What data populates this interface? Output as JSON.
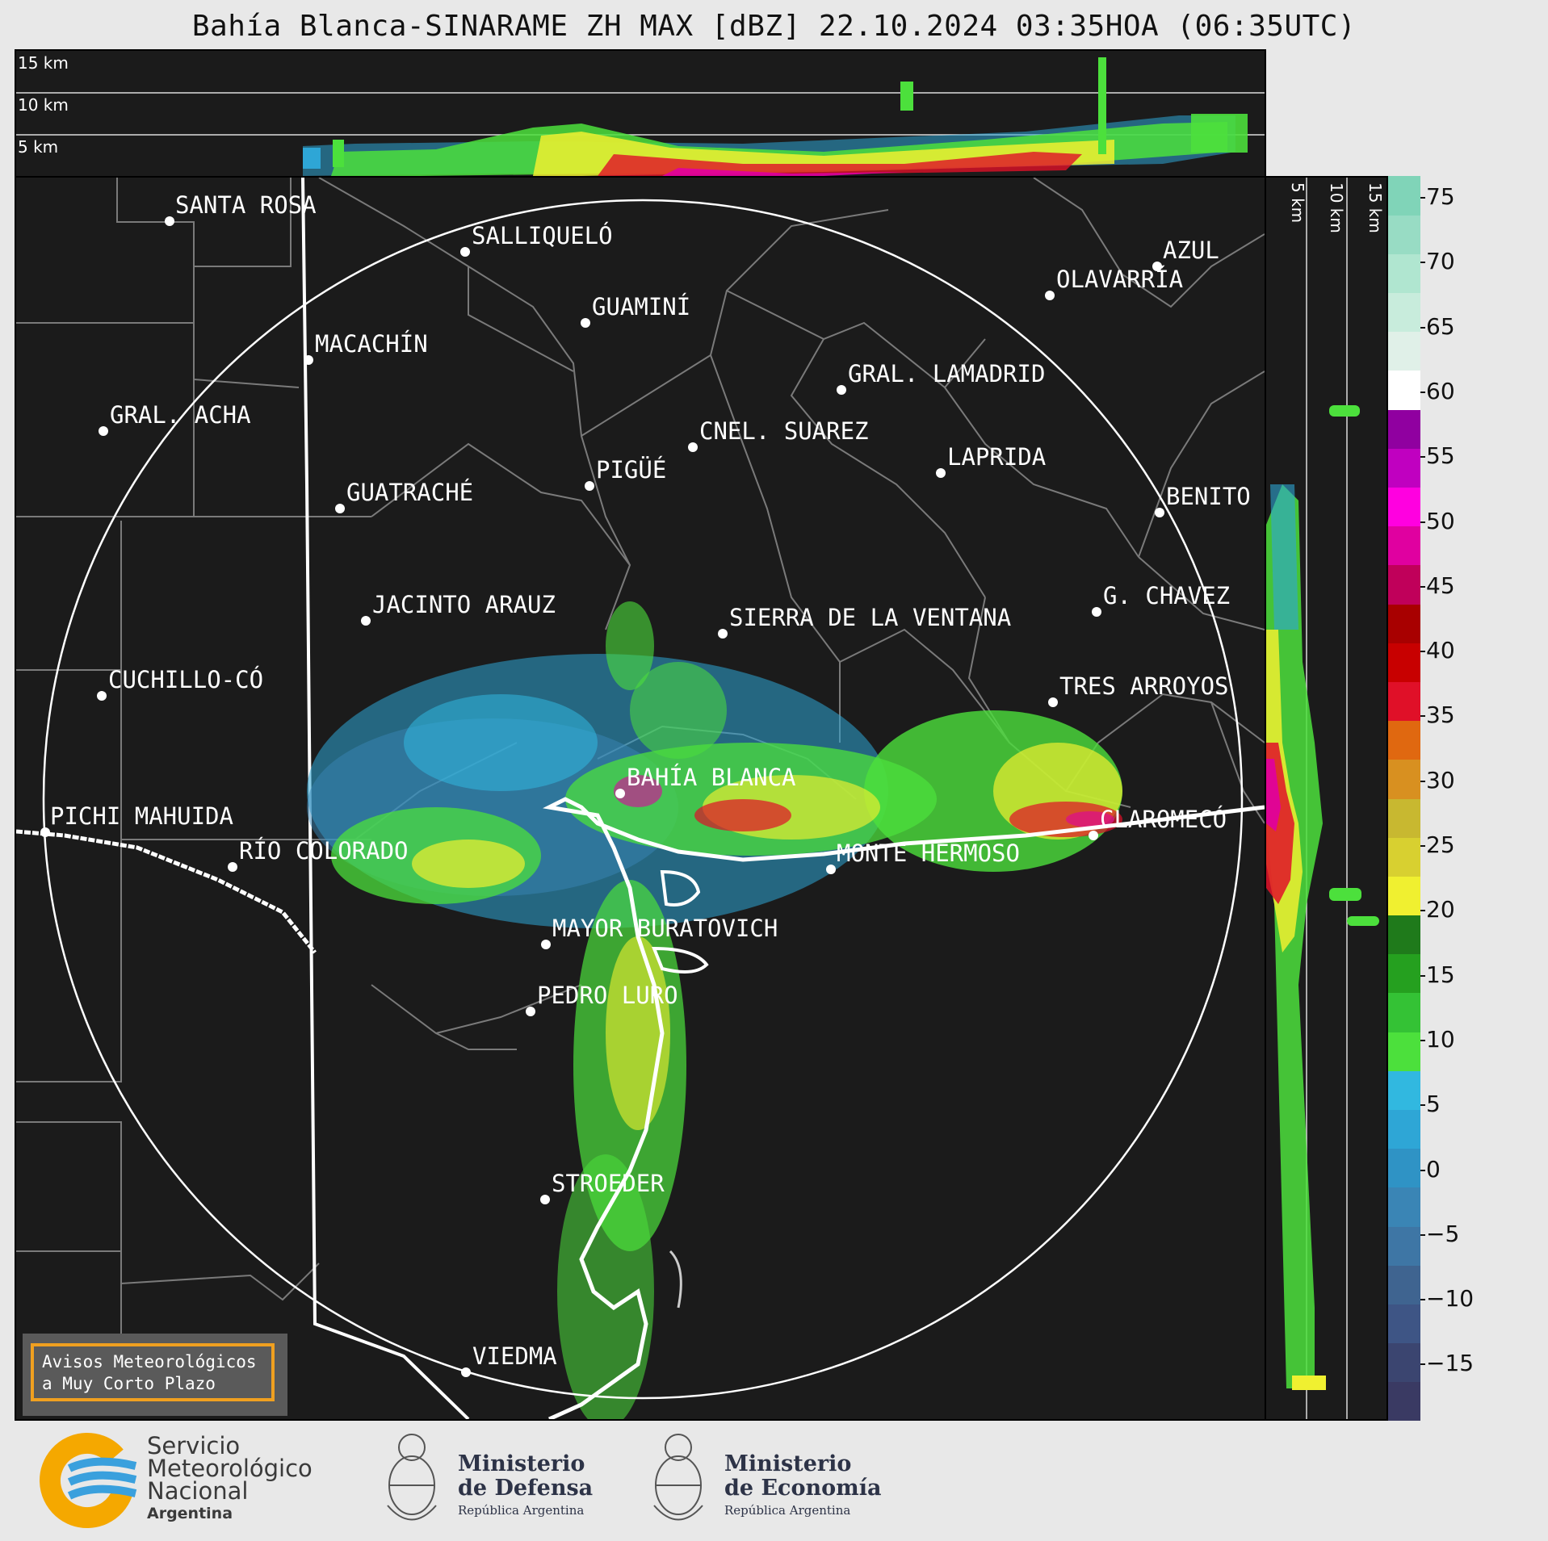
{
  "title": "Bahía Blanca-SINARAME ZH MAX [dBZ] 22.10.2024 03:35HOA (06:35UTC)",
  "top_axis_labels": [
    "15 km",
    "10 km",
    "5 km"
  ],
  "side_axis_labels": [
    "5 km",
    "10 km",
    "15 km"
  ],
  "colorbar": {
    "ticks": [
      "75",
      "70",
      "65",
      "60",
      "55",
      "50",
      "45",
      "40",
      "35",
      "30",
      "25",
      "20",
      "15",
      "10",
      "5",
      "0",
      "−5",
      "−10",
      "−15"
    ],
    "colors": [
      "#3a3a63",
      "#3b4570",
      "#3e5585",
      "#3f6490",
      "#3e76a5",
      "#3a85b5",
      "#2f93c5",
      "#2ea6d6",
      "#31b8e0",
      "#4ce03c",
      "#34c235",
      "#25a01f",
      "#1f7a1b",
      "#f0f030",
      "#d8d030",
      "#c8b830",
      "#d89020",
      "#e06810",
      "#e01028",
      "#c80000",
      "#a80000",
      "#c0005a",
      "#e000a0",
      "#ff00e0",
      "#c000c0",
      "#9000a0",
      "#ffffff",
      "#e0f0e8",
      "#c8ecdc",
      "#b0e6d0",
      "#98dcc4",
      "#80d4b8"
    ],
    "accent": "#f0a020"
  },
  "places": [
    {
      "name": "SANTA ROSA"
    },
    {
      "name": "SALLIQUELÓ"
    },
    {
      "name": "GUAMINÍ"
    },
    {
      "name": "MACACHÍN"
    },
    {
      "name": "AZUL"
    },
    {
      "name": "OLAVARRÍA"
    },
    {
      "name": "GRAL. LAMADRID"
    },
    {
      "name": "GRAL. ACHA"
    },
    {
      "name": "CNEL. SUAREZ"
    },
    {
      "name": "LAPRIDA"
    },
    {
      "name": "PIGÜÉ"
    },
    {
      "name": "GUATRACHÉ"
    },
    {
      "name": "BENITO"
    },
    {
      "name": "G. CHAVEZ"
    },
    {
      "name": "JACINTO ARAUZ"
    },
    {
      "name": "SIERRA DE LA VENTANA"
    },
    {
      "name": "CUCHILLO-CÓ"
    },
    {
      "name": "TRES ARROYOS"
    },
    {
      "name": "BAHÍA BLANCA"
    },
    {
      "name": "PICHI MAHUIDA"
    },
    {
      "name": "CLAROMECÓ"
    },
    {
      "name": "RÍO COLORADO"
    },
    {
      "name": "MONTE HERMOSO"
    },
    {
      "name": "MAYOR BURATOVICH"
    },
    {
      "name": "PEDRO LURO"
    },
    {
      "name": "STROEDER"
    },
    {
      "name": "VIEDMA"
    }
  ],
  "avisos": {
    "line1": "Avisos Meteorológicos",
    "line2": "a Muy Corto Plazo"
  },
  "logos": {
    "smn": {
      "line1": "Servicio",
      "line2": "Meteorológico",
      "line3": "Nacional",
      "line4": "Argentina"
    },
    "defensa": {
      "line1": "Ministerio",
      "line2": "de Defensa",
      "line3": "República Argentina"
    },
    "economia": {
      "line1": "Ministerio",
      "line2": "de Economía",
      "line3": "República Argentina"
    }
  }
}
